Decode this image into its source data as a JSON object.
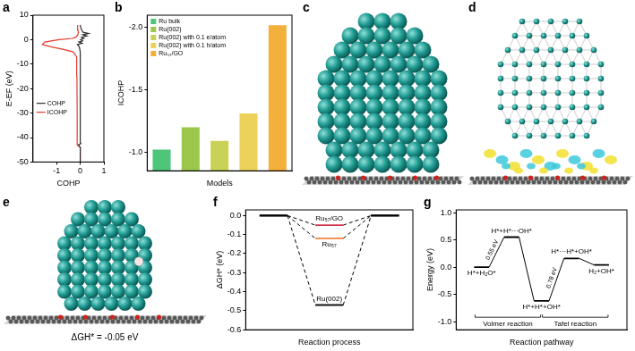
{
  "chart_data": [
    {
      "panel": "a",
      "type": "line",
      "x_label": "COHP",
      "y_label": "E-EF (eV)",
      "xlim": [
        -2,
        1
      ],
      "xticks": [
        -1,
        0,
        1
      ],
      "ylim": [
        -50,
        10
      ],
      "yticks": [
        -50,
        -40,
        -30,
        -20,
        -10,
        0,
        10
      ],
      "grid": false,
      "legend": "left",
      "series": [
        {
          "name": "COHP",
          "color": "#2b2b2b",
          "x": [
            0,
            0,
            -0.08,
            0.03,
            0,
            0,
            -0.04,
            -0.12,
            0.08,
            -0.06,
            0.1,
            0.02,
            0.15,
            0.05,
            0.28,
            0.1,
            0.35,
            0.12,
            0.06,
            0.02,
            0
          ],
          "y": [
            -50,
            -44,
            -43,
            -42.5,
            -42,
            -5,
            -3,
            -2,
            -1.5,
            -1,
            -0.5,
            0,
            0.5,
            1,
            1.5,
            2,
            2.5,
            3,
            4,
            5,
            6
          ]
        },
        {
          "name": "ICOHP",
          "color": "#e8382d",
          "x": [
            0,
            0,
            -0.12,
            -0.13,
            -0.14,
            -0.15,
            -0.3,
            -0.7,
            -1.2,
            -1.6,
            -1.5,
            -0.9,
            -0.35,
            -0.18,
            -0.1,
            -0.08,
            -0.1,
            -0.12,
            -0.1
          ],
          "y": [
            -50,
            -44,
            -43,
            -30,
            -15,
            -7,
            -5,
            -4,
            -3,
            -2,
            -1,
            0,
            0.5,
            1,
            2,
            3,
            4,
            5,
            6
          ]
        }
      ]
    },
    {
      "panel": "b",
      "type": "bar",
      "x_label": "Models",
      "y_label": "ICOHP",
      "categories": [
        "Ru bulk",
        "Ru(002)",
        "Ru(002) with 0.1 e/atom",
        "Ru(002) with 0.1 h/atom",
        "Ru₅₇/GO"
      ],
      "values": [
        -1.02,
        -1.2,
        -1.09,
        -1.31,
        -2.02
      ],
      "colors": [
        "#4dc67a",
        "#9bc84a",
        "#c9d257",
        "#ecd25a",
        "#f3b13c"
      ],
      "ylim": [
        -0.85,
        -2.1
      ],
      "yticks": [
        {
          "value": -1,
          "label": "-1.0"
        },
        {
          "value": -1.5,
          "label": "-1.5"
        },
        {
          "value": -2,
          "label": "-2.0"
        }
      ],
      "grid": false,
      "legend": "upper left",
      "tick_labels": "y"
    },
    {
      "panel": "f",
      "type": "line",
      "x_label": "Reaction process",
      "y_label": "ΔGH* (eV)",
      "categories": [
        null,
        null,
        null
      ],
      "series": [
        {
          "name": "Ru₅₇/GO",
          "color": "#d2334d",
          "values": [
            0,
            -0.05,
            0
          ]
        },
        {
          "name": "Ru₅₇",
          "color": "#f5813a",
          "values": [
            0,
            -0.12,
            0
          ]
        },
        {
          "name": "Ru(002)",
          "color": "#111111",
          "values": [
            0,
            -0.47,
            0
          ]
        }
      ],
      "ylim": [
        -0.6,
        0.03
      ],
      "yticks": [
        {
          "value": 0,
          "label": "0.0"
        },
        {
          "value": -0.1,
          "label": "-0.1"
        },
        {
          "value": -0.2,
          "label": "-0.2"
        },
        {
          "value": -0.3,
          "label": "-0.3"
        },
        {
          "value": -0.4,
          "label": "-0.4"
        },
        {
          "value": -0.5,
          "label": "-0.5"
        },
        {
          "value": -0.6,
          "label": "-0.6"
        }
      ],
      "grid": false,
      "tick_labels": "y",
      "line_style": "dashed"
    },
    {
      "panel": "g",
      "type": "line",
      "x_label": "Reaction pathway",
      "y_label": "Energy (eV)",
      "categories": [
        "H*+H₂O*",
        "H*+H*···OH*",
        "H*+H*+OH*",
        "H*···H*+OH*",
        "H₂+OH*"
      ],
      "values": [
        0,
        0.55,
        -0.62,
        0.16,
        0.04
      ],
      "color": "#000000",
      "ylim": [
        -1.15,
        1.05
      ],
      "yticks": [
        {
          "value": -1,
          "label": "-1.0"
        },
        {
          "value": -0.5,
          "label": "-0.5"
        },
        {
          "value": 0,
          "label": "0.0"
        },
        {
          "value": 0.5,
          "label": "0.5"
        },
        {
          "value": 1,
          "label": "1.0"
        }
      ],
      "grid": false,
      "tick_labels": "y",
      "line_style": "solid",
      "annotations": [
        {
          "text": "0.55 eV",
          "from": 0,
          "to": 1
        },
        {
          "text": "0.78 eV",
          "from": 2,
          "to": 3
        }
      ],
      "groups": [
        {
          "label": "Volmer reaction",
          "from": 0,
          "to": 2
        },
        {
          "label": "Tafel reaction",
          "from": 2,
          "to": 4
        }
      ]
    }
  ],
  "figures": [
    {
      "panel": "c"
    },
    {
      "panel": "d"
    },
    {
      "panel": "e",
      "caption": "ΔGH* = -0.05 eV"
    }
  ]
}
